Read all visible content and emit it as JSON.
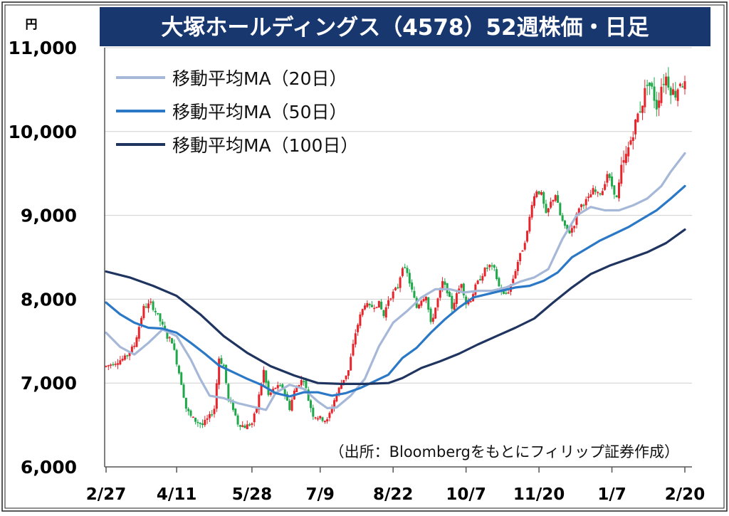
{
  "chart_data": {
    "type": "candlestick",
    "title": "大塚ホールディングス（4578）52週株価・日足",
    "unit_label": "円",
    "ylim": [
      6000,
      11000
    ],
    "y_ticks": [
      "6,000",
      "7,000",
      "8,000",
      "9,000",
      "10,000",
      "11,000"
    ],
    "y_tick_values": [
      6000,
      7000,
      8000,
      9000,
      10000,
      11000
    ],
    "x_tick_labels": [
      "2/27",
      "4/11",
      "5/28",
      "7/9",
      "8/22",
      "10/7",
      "11/20",
      "1/7",
      "2/20"
    ],
    "x_tick_index": [
      0,
      30,
      62,
      91,
      122,
      153,
      184,
      215,
      246
    ],
    "up_color": "#e8232a",
    "down_color": "#1fa84a",
    "grid": true,
    "legend_position": "top-left",
    "series": [
      {
        "name": "移動平均MA（20日）",
        "color": "#a6b8d8",
        "points": [
          [
            0,
            7600
          ],
          [
            6,
            7430
          ],
          [
            12,
            7340
          ],
          [
            18,
            7480
          ],
          [
            24,
            7640
          ],
          [
            30,
            7560
          ],
          [
            36,
            7280
          ],
          [
            40,
            7050
          ],
          [
            44,
            6850
          ],
          [
            50,
            6820
          ],
          [
            56,
            6760
          ],
          [
            62,
            6720
          ],
          [
            68,
            6680
          ],
          [
            72,
            6880
          ],
          [
            78,
            6980
          ],
          [
            84,
            6930
          ],
          [
            90,
            6780
          ],
          [
            94,
            6700
          ],
          [
            98,
            6710
          ],
          [
            104,
            6850
          ],
          [
            110,
            7050
          ],
          [
            116,
            7440
          ],
          [
            122,
            7720
          ],
          [
            128,
            7860
          ],
          [
            134,
            8020
          ],
          [
            140,
            8120
          ],
          [
            146,
            8120
          ],
          [
            152,
            8080
          ],
          [
            158,
            8100
          ],
          [
            164,
            8100
          ],
          [
            170,
            8140
          ],
          [
            176,
            8210
          ],
          [
            182,
            8260
          ],
          [
            188,
            8360
          ],
          [
            194,
            8720
          ],
          [
            200,
            9000
          ],
          [
            206,
            9100
          ],
          [
            212,
            9060
          ],
          [
            218,
            9060
          ],
          [
            224,
            9120
          ],
          [
            230,
            9200
          ],
          [
            236,
            9350
          ],
          [
            240,
            9520
          ],
          [
            246,
            9740
          ]
        ]
      },
      {
        "name": "移動平均MA（50日）",
        "color": "#2a78c6",
        "points": [
          [
            0,
            7960
          ],
          [
            6,
            7820
          ],
          [
            12,
            7720
          ],
          [
            18,
            7660
          ],
          [
            24,
            7650
          ],
          [
            30,
            7600
          ],
          [
            36,
            7480
          ],
          [
            42,
            7350
          ],
          [
            48,
            7210
          ],
          [
            54,
            7130
          ],
          [
            60,
            7050
          ],
          [
            66,
            6980
          ],
          [
            72,
            6880
          ],
          [
            78,
            6840
          ],
          [
            84,
            6890
          ],
          [
            90,
            6890
          ],
          [
            96,
            6850
          ],
          [
            102,
            6880
          ],
          [
            108,
            6940
          ],
          [
            114,
            7020
          ],
          [
            120,
            7100
          ],
          [
            126,
            7300
          ],
          [
            132,
            7420
          ],
          [
            138,
            7600
          ],
          [
            144,
            7760
          ],
          [
            150,
            7900
          ],
          [
            156,
            8020
          ],
          [
            162,
            8060
          ],
          [
            168,
            8100
          ],
          [
            174,
            8140
          ],
          [
            180,
            8160
          ],
          [
            186,
            8220
          ],
          [
            192,
            8320
          ],
          [
            198,
            8500
          ],
          [
            204,
            8600
          ],
          [
            210,
            8700
          ],
          [
            216,
            8780
          ],
          [
            222,
            8860
          ],
          [
            228,
            8960
          ],
          [
            234,
            9060
          ],
          [
            240,
            9200
          ],
          [
            246,
            9350
          ]
        ]
      },
      {
        "name": "移動平均MA（100日）",
        "color": "#1f3560",
        "points": [
          [
            0,
            8330
          ],
          [
            10,
            8260
          ],
          [
            20,
            8160
          ],
          [
            30,
            8040
          ],
          [
            40,
            7820
          ],
          [
            50,
            7560
          ],
          [
            60,
            7360
          ],
          [
            70,
            7200
          ],
          [
            80,
            7090
          ],
          [
            90,
            7000
          ],
          [
            100,
            6990
          ],
          [
            110,
            6990
          ],
          [
            120,
            7000
          ],
          [
            126,
            7060
          ],
          [
            134,
            7180
          ],
          [
            142,
            7260
          ],
          [
            150,
            7350
          ],
          [
            158,
            7460
          ],
          [
            166,
            7560
          ],
          [
            174,
            7660
          ],
          [
            182,
            7770
          ],
          [
            190,
            7960
          ],
          [
            198,
            8140
          ],
          [
            206,
            8300
          ],
          [
            214,
            8400
          ],
          [
            222,
            8480
          ],
          [
            230,
            8560
          ],
          [
            238,
            8670
          ],
          [
            246,
            8830
          ]
        ]
      }
    ],
    "price_path": [
      [
        0,
        7200
      ],
      [
        8,
        7300
      ],
      [
        12,
        7450
      ],
      [
        16,
        7900
      ],
      [
        19,
        7950
      ],
      [
        22,
        7800
      ],
      [
        26,
        7550
      ],
      [
        28,
        7500
      ],
      [
        32,
        7000
      ],
      [
        34,
        6700
      ],
      [
        36,
        6600
      ],
      [
        38,
        6550
      ],
      [
        41,
        6500
      ],
      [
        44,
        6600
      ],
      [
        46,
        6700
      ],
      [
        48,
        7300
      ],
      [
        50,
        7200
      ],
      [
        52,
        6800
      ],
      [
        54,
        6700
      ],
      [
        56,
        6520
      ],
      [
        59,
        6480
      ],
      [
        62,
        6520
      ],
      [
        64,
        6700
      ],
      [
        66,
        7000
      ],
      [
        67,
        7150
      ],
      [
        69,
        6850
      ],
      [
        72,
        6950
      ],
      [
        75,
        6950
      ],
      [
        78,
        6700
      ],
      [
        80,
        6900
      ],
      [
        82,
        7000
      ],
      [
        84,
        7050
      ],
      [
        86,
        6800
      ],
      [
        88,
        6620
      ],
      [
        91,
        6580
      ],
      [
        94,
        6550
      ],
      [
        97,
        6800
      ],
      [
        100,
        7000
      ],
      [
        103,
        7150
      ],
      [
        106,
        7600
      ],
      [
        108,
        7800
      ],
      [
        110,
        7950
      ],
      [
        112,
        7900
      ],
      [
        116,
        7950
      ],
      [
        118,
        7800
      ],
      [
        120,
        8000
      ],
      [
        124,
        8150
      ],
      [
        126,
        8400
      ],
      [
        128,
        8300
      ],
      [
        130,
        8100
      ],
      [
        132,
        7900
      ],
      [
        134,
        8000
      ],
      [
        136,
        8050
      ],
      [
        138,
        7700
      ],
      [
        140,
        7900
      ],
      [
        143,
        8200
      ],
      [
        145,
        8100
      ],
      [
        147,
        7900
      ],
      [
        149,
        8050
      ],
      [
        151,
        8200
      ],
      [
        153,
        7950
      ],
      [
        155,
        8000
      ],
      [
        157,
        8150
      ],
      [
        159,
        8250
      ],
      [
        161,
        8350
      ],
      [
        163,
        8400
      ],
      [
        165,
        8350
      ],
      [
        167,
        8150
      ],
      [
        169,
        8050
      ],
      [
        171,
        8100
      ],
      [
        173,
        8250
      ],
      [
        175,
        8450
      ],
      [
        177,
        8600
      ],
      [
        179,
        8800
      ],
      [
        181,
        9150
      ],
      [
        183,
        9300
      ],
      [
        185,
        9250
      ],
      [
        187,
        9000
      ],
      [
        189,
        9150
      ],
      [
        191,
        9250
      ],
      [
        193,
        9000
      ],
      [
        195,
        8850
      ],
      [
        197,
        8800
      ],
      [
        199,
        8900
      ],
      [
        201,
        9100
      ],
      [
        203,
        9150
      ],
      [
        205,
        9200
      ],
      [
        207,
        9300
      ],
      [
        209,
        9250
      ],
      [
        211,
        9300
      ],
      [
        213,
        9500
      ],
      [
        215,
        9350
      ],
      [
        217,
        9200
      ],
      [
        219,
        9550
      ],
      [
        221,
        9700
      ],
      [
        223,
        9900
      ],
      [
        224,
        10000
      ],
      [
        226,
        10200
      ],
      [
        228,
        10350
      ],
      [
        230,
        10600
      ],
      [
        232,
        10500
      ],
      [
        234,
        10300
      ],
      [
        236,
        10550
      ],
      [
        238,
        10650
      ],
      [
        240,
        10500
      ],
      [
        242,
        10450
      ],
      [
        244,
        10600
      ],
      [
        246,
        10550
      ]
    ],
    "source": "（出所：Bloombergをもとにフィリップ証券作成）"
  }
}
